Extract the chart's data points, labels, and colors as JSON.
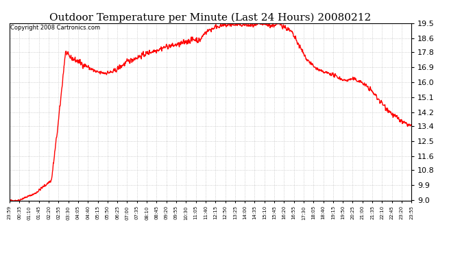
{
  "title": "Outdoor Temperature per Minute (Last 24 Hours) 20080212",
  "copyright": "Copyright 2008 Cartronics.com",
  "line_color": "#ff0000",
  "bg_color": "#ffffff",
  "plot_bg_color": "#ffffff",
  "grid_color": "#c0c0c0",
  "yticks": [
    9.0,
    9.9,
    10.8,
    11.6,
    12.5,
    13.4,
    14.2,
    15.1,
    16.0,
    16.9,
    17.8,
    18.6,
    19.5
  ],
  "x_labels": [
    "23:59",
    "00:35",
    "01:10",
    "01:45",
    "02:20",
    "02:55",
    "03:30",
    "04:05",
    "04:40",
    "05:15",
    "05:50",
    "06:25",
    "07:00",
    "07:35",
    "08:10",
    "08:45",
    "09:20",
    "09:55",
    "10:30",
    "11:05",
    "11:40",
    "12:15",
    "12:50",
    "13:25",
    "14:00",
    "14:35",
    "15:10",
    "15:45",
    "16:20",
    "16:55",
    "17:30",
    "18:05",
    "18:40",
    "19:15",
    "19:50",
    "20:25",
    "21:00",
    "21:35",
    "22:10",
    "22:45",
    "23:20",
    "23:55"
  ],
  "ymin": 9.0,
  "ymax": 19.5,
  "line_width": 1.0,
  "title_fontsize": 11,
  "copyright_fontsize": 6,
  "ytick_fontsize": 8,
  "xtick_fontsize": 5
}
